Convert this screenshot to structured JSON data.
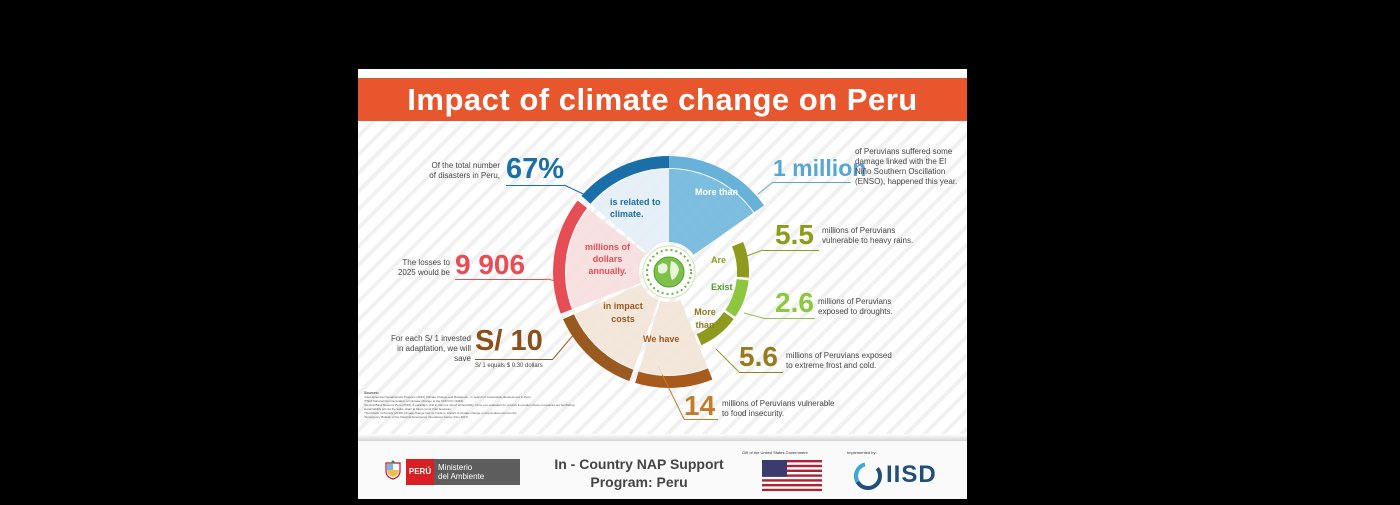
{
  "title": "Impact of climate change on Peru",
  "colors": {
    "banner": "#e8562e",
    "blue_dark": "#1b6fa8",
    "blue_light": "#68b2d9",
    "red": "#e64d55",
    "brown": "#9a5a1f",
    "olive": "#8e9a1d",
    "green": "#8dc63f"
  },
  "stats": {
    "disasters": {
      "intro": "Of the total number of disasters in Peru,",
      "value": "67%",
      "ring_label": "is related to climate."
    },
    "million": {
      "prefix": "More than",
      "value": "1 million",
      "text": "of Peruvians suffered some damage linked with the El Niño Southern Oscillation (ENSO), happened this year."
    },
    "rains": {
      "ring_label": "Are",
      "value": "5.5",
      "text": "millions of Peruvians vulnerable to heavy rains."
    },
    "droughts": {
      "ring_label": "Exist",
      "value": "2.6",
      "text": "millions of Peruvians exposed to droughts."
    },
    "frost": {
      "ring_label": "More than",
      "value": "5.6",
      "text": "millions of Peruvians exposed to extreme frost and cold."
    },
    "food": {
      "ring_label": "We have",
      "value": "14",
      "text": "millions of Peruvians vulnerable to food insecurity."
    },
    "losses": {
      "intro": "The losses to 2025 would be",
      "value": "9 906",
      "ring_label": "millions of dollars annually."
    },
    "savings": {
      "intro": "For each S/ 1 invested in adaptation, we will save",
      "value": "S/ 10",
      "note": "S/ 1 equals $ 0.30 dollars",
      "ring_label": "in impact costs"
    }
  },
  "sources": {
    "heading": "Sources:",
    "lines": [
      "¹Inter-American Development Program (2014) Climate Change and Resilience - in search of sustainable development in Peru.",
      "²Third National Communication on Climate Change to the UNFCCC (2016).",
      "³Central Bank Reserve Peru (2018). A paradigm shift in risk is a risk of vulnerability. Once you evaluated for product innovation those companies are facilitating",
      "sustainability across the value chain to future proof their business.",
      "⁴Stockholm University (2018) Climate change has no borders. Impact of climate change on the Andean Community.",
      "⁵Emergency Bulletin of the National Emergency Operations Center (Nov 2017)."
    ]
  },
  "footer": {
    "ministry_brand": "PERÚ",
    "ministry_name_1": "Ministerio",
    "ministry_name_2": "del Ambiente",
    "program_line1": "In - Country NAP Support",
    "program_line2": "Program: Peru",
    "gift_label": "Gift of the United States Government",
    "implemented_label": "Implemented by:",
    "iisd": "IISD"
  }
}
